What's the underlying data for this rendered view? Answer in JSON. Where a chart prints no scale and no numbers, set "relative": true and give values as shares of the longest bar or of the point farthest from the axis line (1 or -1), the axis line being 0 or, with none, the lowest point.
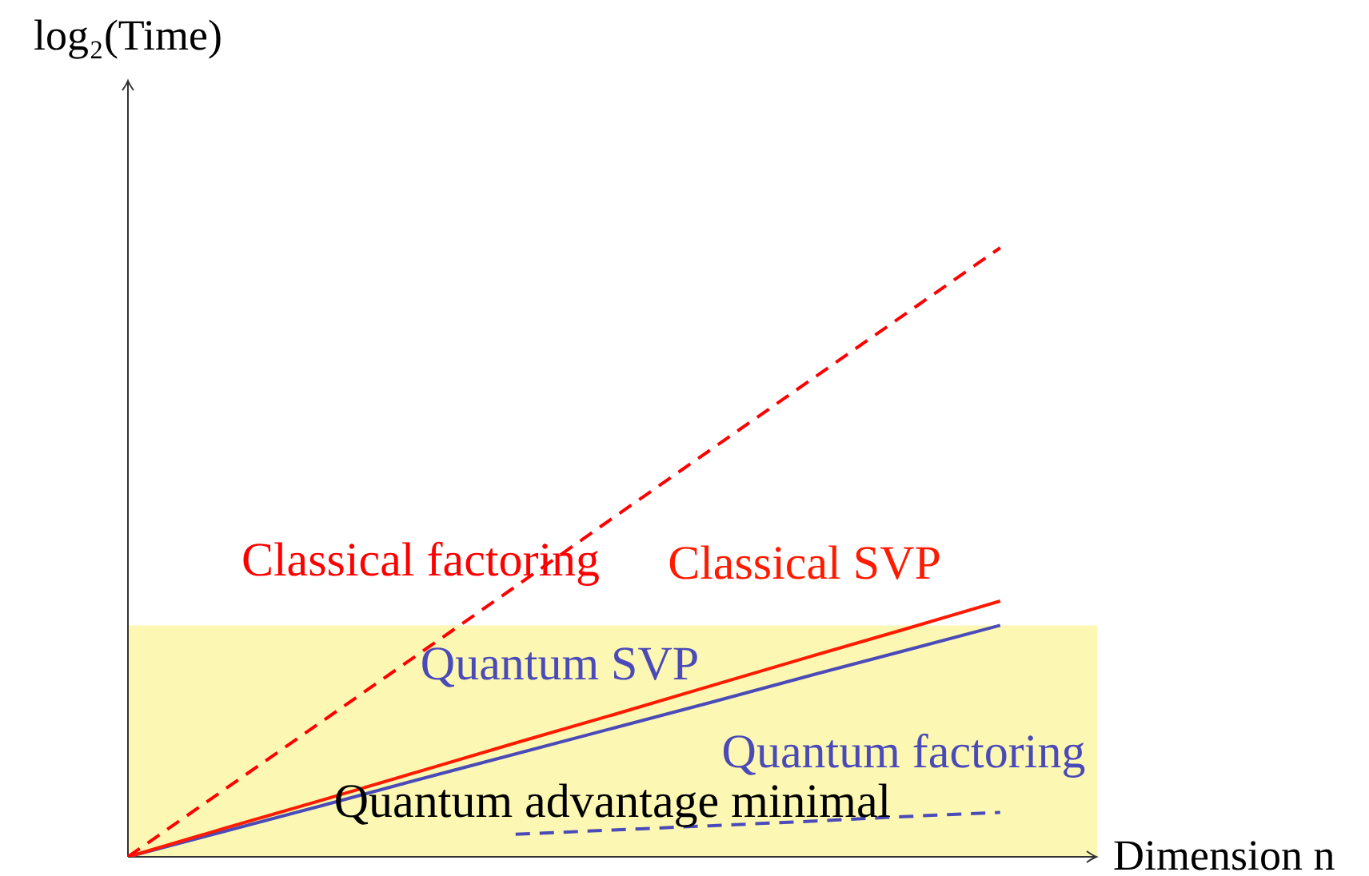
{
  "chart_data": {
    "type": "line",
    "relative": true,
    "xlabel": "Dimension n",
    "ylabel": "log₂(Time)",
    "categories": [
      null,
      null,
      null,
      null,
      null,
      null,
      null,
      null,
      null,
      null,
      null
    ],
    "series": [
      {
        "name": "Classical factoring",
        "color": "#ff0000",
        "line_style": "dashed",
        "values": [
          0,
          0.111,
          0.222,
          0.333,
          0.444,
          0.556,
          0.667,
          0.778,
          0.889,
          1,
          null
        ]
      },
      {
        "name": "Classical SVP",
        "color": "#ff1a00",
        "line_style": "solid",
        "values": [
          0,
          0.047,
          0.093,
          0.14,
          0.187,
          0.233,
          0.28,
          0.327,
          0.373,
          0.42,
          null
        ]
      },
      {
        "name": "Quantum SVP",
        "color": "#4a4ab8",
        "line_style": "solid",
        "values": [
          0,
          0.042,
          0.084,
          0.127,
          0.169,
          0.211,
          0.253,
          0.296,
          0.338,
          0.38,
          null
        ]
      },
      {
        "name": "Quantum factoring",
        "color": "#4a4ab8",
        "line_style": "dashed",
        "values": [
          null,
          null,
          null,
          null,
          0.037,
          0.044,
          0.051,
          0.058,
          0.066,
          0.073,
          null
        ]
      }
    ],
    "bands": [
      {
        "axis": "y",
        "from": 0,
        "to": 0.38,
        "label": "Quantum advantage minimal",
        "color": "#fcf7b2"
      }
    ],
    "marker": "none",
    "legend": false,
    "grid": false,
    "tick_labels": false
  }
}
